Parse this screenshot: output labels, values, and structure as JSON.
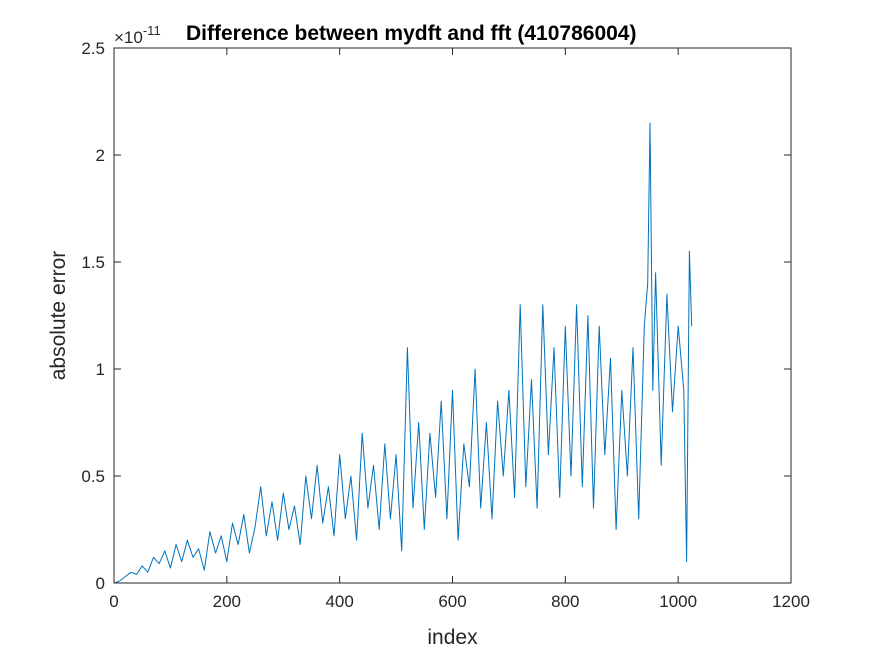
{
  "chart_data": {
    "type": "line",
    "title": "Difference between mydft and fft (410786004)",
    "xlabel": "index",
    "ylabel": "absolute error",
    "xlim": [
      0,
      1200
    ],
    "ylim": [
      0,
      2.5
    ],
    "y_multiplier": {
      "base": "×10",
      "exponent": "-11"
    },
    "x_ticks": [
      "0",
      "200",
      "400",
      "600",
      "800",
      "1000",
      "1200"
    ],
    "y_ticks": [
      "0",
      "0.5",
      "1",
      "1.5",
      "2",
      "2.5"
    ],
    "grid": false,
    "line_color": "#0072BD",
    "series": [
      {
        "x": [
          1,
          10,
          20,
          30,
          40,
          50,
          60,
          70,
          80,
          90,
          100,
          110,
          120,
          130,
          140,
          150,
          160,
          170,
          180,
          190,
          200,
          210,
          220,
          230,
          240,
          250,
          260,
          270,
          280,
          290,
          300,
          310,
          320,
          330,
          340,
          350,
          360,
          370,
          380,
          390,
          400,
          410,
          420,
          430,
          440,
          450,
          460,
          470,
          480,
          490,
          500,
          510,
          520,
          530,
          540,
          550,
          560,
          570,
          580,
          590,
          600,
          610,
          620,
          630,
          640,
          650,
          660,
          670,
          680,
          690,
          700,
          710,
          720,
          730,
          740,
          750,
          760,
          770,
          780,
          790,
          800,
          810,
          820,
          830,
          840,
          850,
          860,
          870,
          880,
          890,
          900,
          910,
          920,
          930,
          940,
          946,
          950,
          955,
          960,
          970,
          980,
          990,
          1000,
          1010,
          1015,
          1020,
          1024
        ],
        "values": [
          0.0,
          0.01,
          0.03,
          0.05,
          0.04,
          0.08,
          0.05,
          0.12,
          0.09,
          0.15,
          0.07,
          0.18,
          0.1,
          0.2,
          0.12,
          0.16,
          0.06,
          0.24,
          0.14,
          0.22,
          0.1,
          0.28,
          0.18,
          0.32,
          0.14,
          0.26,
          0.45,
          0.22,
          0.38,
          0.2,
          0.42,
          0.25,
          0.36,
          0.18,
          0.5,
          0.3,
          0.55,
          0.28,
          0.45,
          0.22,
          0.6,
          0.3,
          0.5,
          0.2,
          0.7,
          0.35,
          0.55,
          0.25,
          0.65,
          0.3,
          0.6,
          0.15,
          1.1,
          0.35,
          0.75,
          0.25,
          0.7,
          0.4,
          0.85,
          0.3,
          0.9,
          0.2,
          0.65,
          0.45,
          1.0,
          0.35,
          0.75,
          0.3,
          0.85,
          0.5,
          0.9,
          0.4,
          1.3,
          0.45,
          0.95,
          0.35,
          1.3,
          0.6,
          1.1,
          0.4,
          1.2,
          0.5,
          1.3,
          0.45,
          1.25,
          0.35,
          1.2,
          0.6,
          1.05,
          0.25,
          0.9,
          0.5,
          1.1,
          0.3,
          1.2,
          1.4,
          2.15,
          0.9,
          1.45,
          0.55,
          1.35,
          0.8,
          1.2,
          0.9,
          0.1,
          1.55,
          1.2
        ]
      }
    ]
  }
}
